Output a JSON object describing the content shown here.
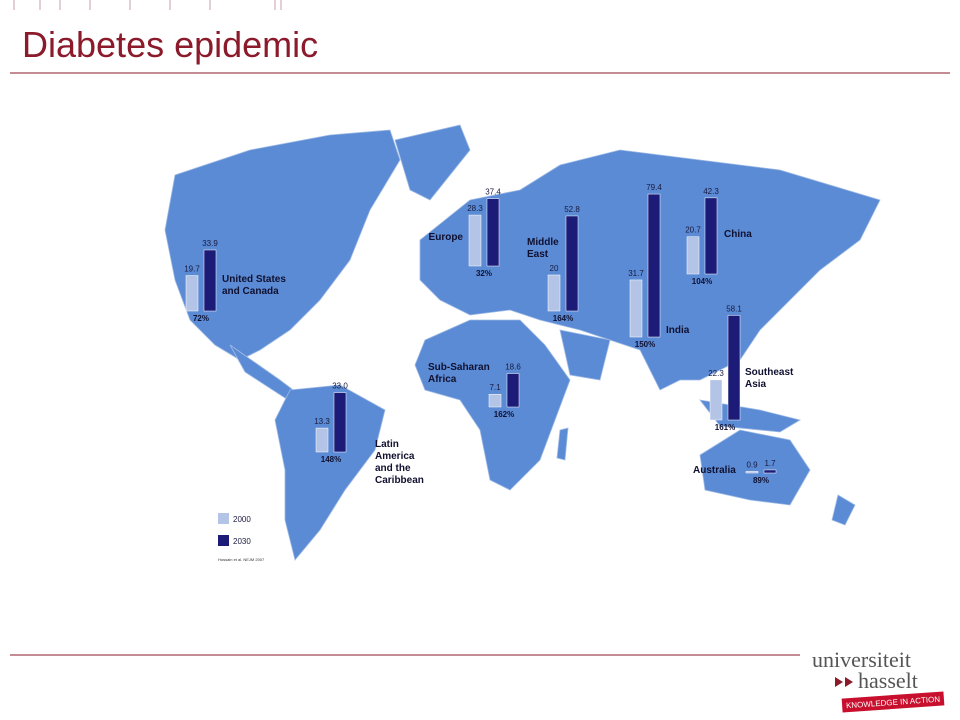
{
  "title": "Diabetes epidemic",
  "regions": [
    {
      "name": [
        "United States",
        "and Canada"
      ],
      "v2000": 19.7,
      "v2030": 33.9,
      "increase": "72%"
    },
    {
      "name": [
        "Europe"
      ],
      "v2000": 28.3,
      "v2030": 37.4,
      "increase": "32%"
    },
    {
      "name": [
        "Middle",
        "East"
      ],
      "v2000": 20,
      "v2030": 52.8,
      "increase": "164%"
    },
    {
      "name": [
        "India"
      ],
      "v2000": 31.7,
      "v2030": 79.4,
      "increase": "150%"
    },
    {
      "name": [
        "China"
      ],
      "v2000": 20.7,
      "v2030": 42.3,
      "increase": "104%"
    },
    {
      "name": [
        "Southeast",
        "Asia"
      ],
      "v2000": 22.3,
      "v2030": 58.1,
      "increase": "161%"
    },
    {
      "name": [
        "Sub-Saharan",
        "Africa"
      ],
      "v2000": 7.1,
      "v2030": 18.6,
      "increase": "162%"
    },
    {
      "name": [
        "Latin",
        "America",
        "and the",
        "Caribbean"
      ],
      "v2000": 13.3,
      "v2030": {
        "value": 33,
        "label": "33.0"
      },
      "increase": "148%"
    },
    {
      "name": [
        "Australia"
      ],
      "v2000": 0.9,
      "v2030": 1.7,
      "increase": "89%"
    }
  ],
  "legend": [
    "2000",
    "2030"
  ],
  "source": "Hossain et al. NEJM 2007",
  "logo": {
    "line1": "universiteit",
    "line2": "hasselt",
    "tagline": "KNOWLEDGE IN ACTION"
  }
}
